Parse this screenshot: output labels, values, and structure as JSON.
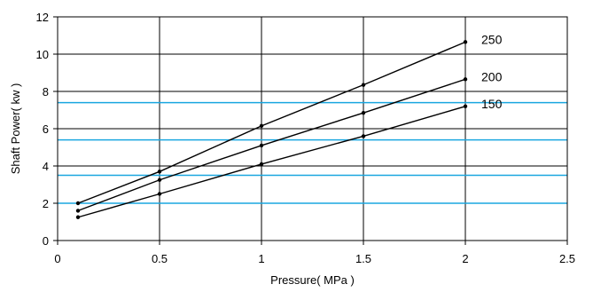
{
  "chart_data": {
    "type": "line",
    "title": "",
    "xlabel": "Pressure( MPa )",
    "ylabel": "Shaft Power( kw )",
    "xlim": [
      0,
      2.5
    ],
    "ylim": [
      0,
      12
    ],
    "xticks": [
      0,
      0.5,
      1,
      1.5,
      2,
      2.5
    ],
    "xtick_labels": [
      "0",
      "0.5",
      "1",
      "1.5",
      "2",
      "2.5"
    ],
    "yticks": [
      0,
      2,
      4,
      6,
      8,
      10,
      12
    ],
    "ytick_labels": [
      "0",
      "2",
      "4",
      "6",
      "8",
      "10",
      "12"
    ],
    "grid": true,
    "reference_lines_y": [
      2.0,
      3.5,
      5.4,
      7.4
    ],
    "reference_line_color": "#1aa7e0",
    "series": [
      {
        "name": "250",
        "x": [
          0.1,
          0.5,
          1,
          1.5,
          2
        ],
        "y": [
          2.0,
          3.7,
          6.15,
          8.35,
          10.65
        ]
      },
      {
        "name": "200",
        "x": [
          0.1,
          0.5,
          1,
          1.5,
          2
        ],
        "y": [
          1.6,
          3.25,
          5.1,
          6.85,
          8.65
        ]
      },
      {
        "name": "150",
        "x": [
          0.1,
          0.5,
          1,
          1.5,
          2
        ],
        "y": [
          1.25,
          2.5,
          4.1,
          5.6,
          7.2
        ]
      }
    ]
  }
}
